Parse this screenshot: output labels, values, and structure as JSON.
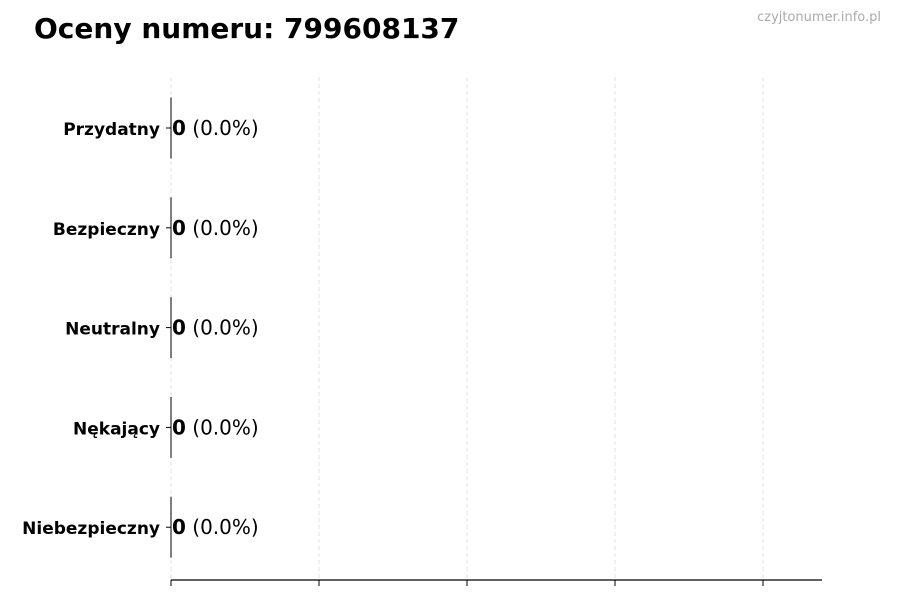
{
  "title": "Oceny numeru: 799608137",
  "watermark": "czyjtonumer.info.pl",
  "chart_data": {
    "type": "bar",
    "orientation": "horizontal",
    "title": "Oceny numeru: 799608137",
    "categories": [
      "Przydatny",
      "Bezpieczny",
      "Neutralny",
      "Nękający",
      "Niebezpieczny"
    ],
    "values": [
      0,
      0,
      0,
      0,
      0
    ],
    "data_labels": [
      {
        "count": "0",
        "percent": "(0.0%)"
      },
      {
        "count": "0",
        "percent": "(0.0%)"
      },
      {
        "count": "0",
        "percent": "(0.0%)"
      },
      {
        "count": "0",
        "percent": "(0.0%)"
      },
      {
        "count": "0",
        "percent": "(0.0%)"
      }
    ],
    "xlabel": "",
    "ylabel": "",
    "x_tick_labels_shown": false,
    "grid": "vertical dashed",
    "bar_edge_color": "#000000",
    "grid_color": "#d9d9d9"
  }
}
